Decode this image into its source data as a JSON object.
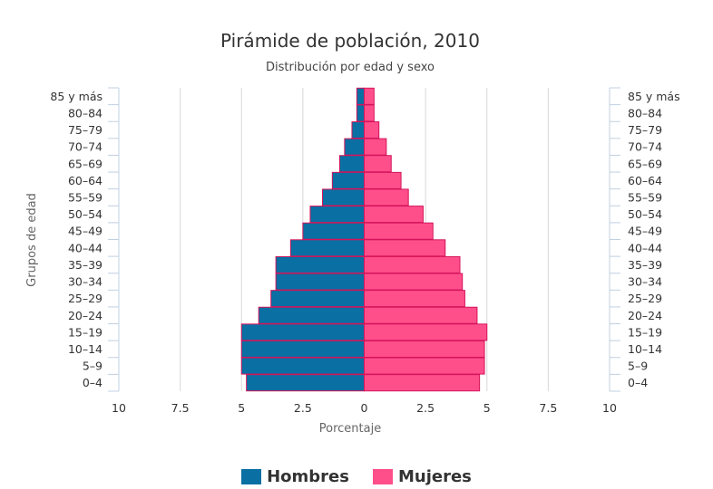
{
  "chart_data": {
    "type": "bar",
    "orientation": "horizontal-population-pyramid",
    "title": "Pirámide de población, 2010",
    "subtitle": "Distribución por edad y sexo",
    "ylabel": "Grupos de edad",
    "xlabel": "Porcentaje",
    "categories": [
      "0-4",
      "5-9",
      "10-14",
      "15-19",
      "20-24",
      "25-29",
      "30-34",
      "35-39",
      "40-44",
      "45-49",
      "50-54",
      "55-59",
      "60-64",
      "65-69",
      "70-74",
      "75-79",
      "80-84",
      "85 y más"
    ],
    "category_labels": [
      "0–4",
      "5–9",
      "10–14",
      "15–19",
      "20–24",
      "25–29",
      "30–34",
      "35–39",
      "40–44",
      "45–49",
      "50–54",
      "55–59",
      "60–64",
      "65–69",
      "70–74",
      "75–79",
      "80–84",
      "85 y más"
    ],
    "series": [
      {
        "name": "Hombres",
        "color": "#0a6fa3",
        "values": [
          4.8,
          5.0,
          5.0,
          5.0,
          4.3,
          3.8,
          3.6,
          3.6,
          3.0,
          2.5,
          2.2,
          1.7,
          1.3,
          1.0,
          0.8,
          0.5,
          0.3,
          0.3
        ]
      },
      {
        "name": "Mujeres",
        "color": "#ff4f8b",
        "values": [
          4.7,
          4.9,
          4.9,
          5.0,
          4.6,
          4.1,
          4.0,
          3.9,
          3.3,
          2.8,
          2.4,
          1.8,
          1.5,
          1.1,
          0.9,
          0.6,
          0.4,
          0.4
        ]
      }
    ],
    "xlim": [
      -10,
      10
    ],
    "xticks": [
      "10",
      "7.5",
      "5",
      "2.5",
      "0",
      "2.5",
      "5",
      "7.5",
      "10"
    ],
    "grid": true,
    "legend": "bottom-center",
    "bar_border_color": "#d4145a"
  }
}
